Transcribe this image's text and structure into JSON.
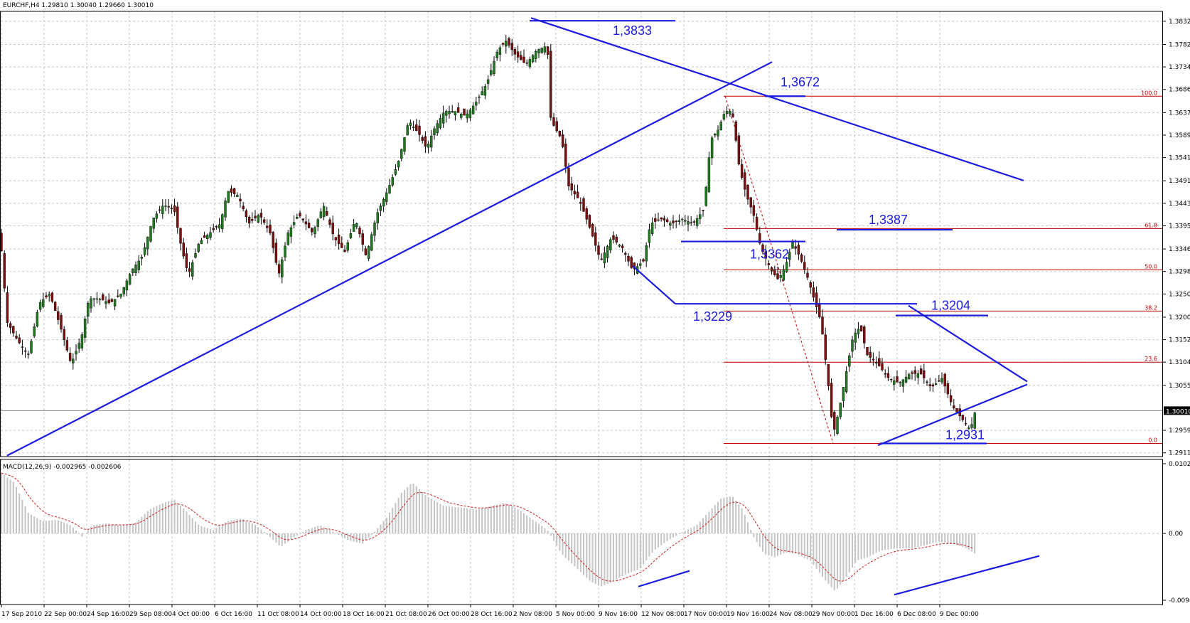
{
  "chart_data": {
    "type": "candlestick",
    "title": "EURCHF,H4",
    "ohlc_readout": [
      "1.29810",
      "1.30040",
      "1.29660",
      "1.30010"
    ],
    "last_price": "1.30010",
    "price_axis_ticks": [
      "1.38320",
      "1.37825",
      "1.37345",
      "1.36865",
      "1.36370",
      "1.35890",
      "1.35410",
      "1.34915",
      "1.34435",
      "1.33955",
      "1.33460",
      "1.32980",
      "1.32500",
      "1.32005",
      "1.31525",
      "1.31045",
      "1.30550",
      "1.29590",
      "1.29110"
    ],
    "price_range": [
      1.2906,
      1.385
    ],
    "time_axis_ticks": [
      "17 Sep 2010",
      "22 Sep 00:00",
      "24 Sep 16:00",
      "29 Sep 08:00",
      "4 Oct 00:00",
      "6 Oct 16:00",
      "11 Oct 08:00",
      "14 Oct 00:00",
      "18 Oct 16:00",
      "21 Oct 08:00",
      "26 Oct 00:00",
      "28 Oct 16:00",
      "2 Nov 08:00",
      "5 Nov 00:00",
      "9 Nov 16:00",
      "12 Nov 08:00",
      "17 Nov 00:00",
      "19 Nov 16:00",
      "24 Nov 08:00",
      "29 Nov 00:00",
      "1 Dec 16:00",
      "6 Dec 08:00",
      "9 Dec 00:00"
    ],
    "price_path": [
      [
        0,
        1.338
      ],
      [
        10,
        1.319
      ],
      [
        25,
        1.315
      ],
      [
        40,
        1.312
      ],
      [
        55,
        1.323
      ],
      [
        70,
        1.325
      ],
      [
        85,
        1.318
      ],
      [
        100,
        1.31
      ],
      [
        115,
        1.316
      ],
      [
        125,
        1.324
      ],
      [
        140,
        1.324
      ],
      [
        155,
        1.323
      ],
      [
        170,
        1.325
      ],
      [
        185,
        1.33
      ],
      [
        200,
        1.333
      ],
      [
        215,
        1.341
      ],
      [
        230,
        1.344
      ],
      [
        245,
        1.343
      ],
      [
        255,
        1.335
      ],
      [
        265,
        1.329
      ],
      [
        280,
        1.336
      ],
      [
        295,
        1.338
      ],
      [
        310,
        1.34
      ],
      [
        320,
        1.347
      ],
      [
        335,
        1.346
      ],
      [
        350,
        1.34
      ],
      [
        365,
        1.342
      ],
      [
        380,
        1.338
      ],
      [
        392,
        1.329
      ],
      [
        405,
        1.338
      ],
      [
        420,
        1.342
      ],
      [
        440,
        1.338
      ],
      [
        455,
        1.344
      ],
      [
        470,
        1.337
      ],
      [
        485,
        1.334
      ],
      [
        500,
        1.341
      ],
      [
        515,
        1.333
      ],
      [
        530,
        1.342
      ],
      [
        545,
        1.347
      ],
      [
        560,
        1.353
      ],
      [
        575,
        1.362
      ],
      [
        590,
        1.359
      ],
      [
        600,
        1.356
      ],
      [
        610,
        1.36
      ],
      [
        625,
        1.364
      ],
      [
        640,
        1.364
      ],
      [
        655,
        1.363
      ],
      [
        670,
        1.366
      ],
      [
        685,
        1.37
      ],
      [
        700,
        1.377
      ],
      [
        712,
        1.379
      ],
      [
        725,
        1.376
      ],
      [
        740,
        1.374
      ],
      [
        755,
        1.377
      ],
      [
        770,
        1.378
      ],
      [
        775,
        1.362
      ],
      [
        790,
        1.358
      ],
      [
        800,
        1.348
      ],
      [
        815,
        1.345
      ],
      [
        830,
        1.339
      ],
      [
        845,
        1.332
      ],
      [
        860,
        1.337
      ],
      [
        875,
        1.335
      ],
      [
        890,
        1.33
      ],
      [
        905,
        1.332
      ],
      [
        915,
        1.34
      ],
      [
        930,
        1.341
      ],
      [
        945,
        1.34
      ],
      [
        960,
        1.341
      ],
      [
        975,
        1.34
      ],
      [
        990,
        1.343
      ],
      [
        1000,
        1.358
      ],
      [
        1010,
        1.36
      ],
      [
        1020,
        1.364
      ],
      [
        1030,
        1.364
      ],
      [
        1040,
        1.352
      ],
      [
        1050,
        1.346
      ],
      [
        1060,
        1.342
      ],
      [
        1070,
        1.335
      ],
      [
        1085,
        1.33
      ],
      [
        1095,
        1.328
      ],
      [
        1105,
        1.331
      ],
      [
        1115,
        1.336
      ],
      [
        1125,
        1.333
      ],
      [
        1135,
        1.329
      ],
      [
        1145,
        1.324
      ],
      [
        1155,
        1.319
      ],
      [
        1165,
        1.306
      ],
      [
        1172,
        1.295
      ],
      [
        1180,
        1.3
      ],
      [
        1190,
        1.308
      ],
      [
        1200,
        1.316
      ],
      [
        1210,
        1.318
      ],
      [
        1220,
        1.312
      ],
      [
        1235,
        1.31
      ],
      [
        1250,
        1.307
      ],
      [
        1265,
        1.306
      ],
      [
        1280,
        1.308
      ],
      [
        1295,
        1.308
      ],
      [
        1310,
        1.305
      ],
      [
        1325,
        1.307
      ],
      [
        1340,
        1.301
      ],
      [
        1355,
        1.298
      ],
      [
        1365,
        1.296
      ],
      [
        1372,
        1.3001
      ]
    ],
    "price_axis_label_overlay": [
      {
        "price": 1.3833,
        "label": "1,3833"
      },
      {
        "price": 1.3672,
        "label": "1,3672"
      },
      {
        "price": 1.3387,
        "label": "1,3387"
      },
      {
        "price": 1.3362,
        "label": "1,3362"
      },
      {
        "price": 1.3229,
        "label": "1,3229"
      },
      {
        "price": 1.3204,
        "label": "1,3204"
      },
      {
        "price": 1.2931,
        "label": "1,2931"
      }
    ],
    "fibonacci": {
      "high": 1.3672,
      "low": 1.2931,
      "levels": [
        {
          "label": "100.0",
          "price": 1.3672
        },
        {
          "label": "61.8",
          "price": 1.33895
        },
        {
          "label": "50.0",
          "price": 1.33015
        },
        {
          "label": "38.2",
          "price": 1.32135
        },
        {
          "label": "23.6",
          "price": 1.31045
        },
        {
          "label": "0.0",
          "price": 1.2931
        }
      ]
    },
    "indicator": {
      "name": "MACD(12,26,9)",
      "main_value": "-0.002965",
      "signal_value": "-0.002606",
      "axis_ticks": [
        "0.010244",
        "0.00",
        "-0.00981"
      ],
      "range": [
        -0.00981,
        0.010244
      ],
      "macd_path": [
        [
          0,
          0.009
        ],
        [
          20,
          0.0075
        ],
        [
          40,
          0.003
        ],
        [
          60,
          0.0018
        ],
        [
          80,
          0.002
        ],
        [
          100,
          0.0012
        ],
        [
          115,
          -0.0005
        ],
        [
          130,
          0.0012
        ],
        [
          150,
          0.0015
        ],
        [
          170,
          0.0012
        ],
        [
          190,
          0.0015
        ],
        [
          210,
          0.0035
        ],
        [
          230,
          0.0045
        ],
        [
          245,
          0.005
        ],
        [
          260,
          0.0035
        ],
        [
          280,
          0.0012
        ],
        [
          300,
          0.0005
        ],
        [
          320,
          0.0018
        ],
        [
          340,
          0.0022
        ],
        [
          360,
          0.0012
        ],
        [
          380,
          -0.0005
        ],
        [
          395,
          -0.002
        ],
        [
          410,
          -0.0008
        ],
        [
          430,
          0.0005
        ],
        [
          450,
          0.0012
        ],
        [
          470,
          0.0002
        ],
        [
          490,
          -0.001
        ],
        [
          510,
          -0.0015
        ],
        [
          525,
          0.0
        ],
        [
          545,
          0.0025
        ],
        [
          565,
          0.006
        ],
        [
          580,
          0.0075
        ],
        [
          600,
          0.0055
        ],
        [
          625,
          0.004
        ],
        [
          650,
          0.0038
        ],
        [
          670,
          0.0035
        ],
        [
          690,
          0.004
        ],
        [
          710,
          0.0045
        ],
        [
          730,
          0.0035
        ],
        [
          750,
          0.002
        ],
        [
          770,
          0.0005
        ],
        [
          790,
          -0.003
        ],
        [
          810,
          -0.005
        ],
        [
          830,
          -0.007
        ],
        [
          845,
          -0.0078
        ],
        [
          860,
          -0.0072
        ],
        [
          880,
          -0.006
        ],
        [
          900,
          -0.0052
        ],
        [
          920,
          -0.0025
        ],
        [
          940,
          -0.001
        ],
        [
          960,
          0.0002
        ],
        [
          980,
          0.0012
        ],
        [
          1000,
          0.0035
        ],
        [
          1015,
          0.0052
        ],
        [
          1030,
          0.0055
        ],
        [
          1045,
          0.0035
        ],
        [
          1060,
          -0.0005
        ],
        [
          1075,
          -0.003
        ],
        [
          1090,
          -0.0035
        ],
        [
          1105,
          -0.0028
        ],
        [
          1120,
          -0.003
        ],
        [
          1140,
          -0.004
        ],
        [
          1160,
          -0.0068
        ],
        [
          1175,
          -0.0085
        ],
        [
          1190,
          -0.0065
        ],
        [
          1205,
          -0.004
        ],
        [
          1220,
          -0.0035
        ],
        [
          1240,
          -0.0025
        ],
        [
          1260,
          -0.0022
        ],
        [
          1280,
          -0.0022
        ],
        [
          1300,
          -0.0018
        ],
        [
          1320,
          -0.0012
        ],
        [
          1340,
          -0.0015
        ],
        [
          1360,
          -0.0022
        ],
        [
          1372,
          -0.003
        ]
      ]
    }
  },
  "colors": {
    "trendline": "#1b1be0",
    "fib": "#c00000",
    "bull_candle": "#207a20",
    "bear_candle": "#7a1010",
    "histogram": "#c4c4c4",
    "signal": "#d02020",
    "grid": "#c8c8c8"
  }
}
